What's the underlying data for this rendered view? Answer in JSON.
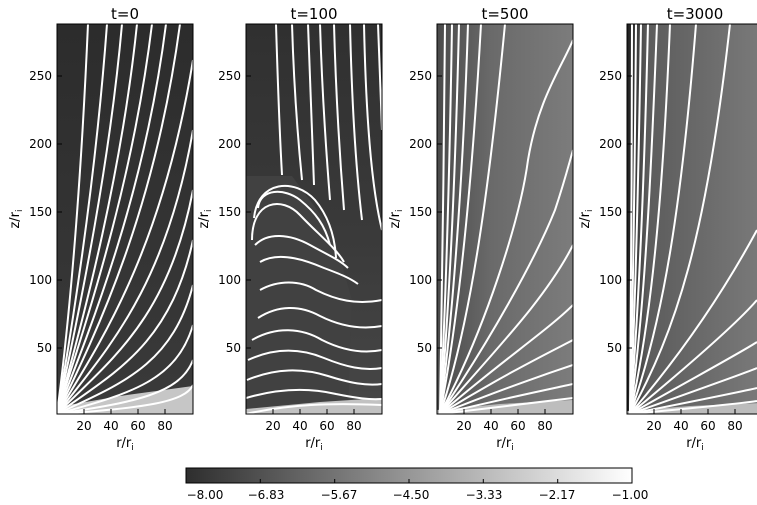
{
  "colors": {
    "frame": "#000000",
    "field_lines": "#ffffff",
    "colorbar_low": "#2e2e2e",
    "colorbar_high": "#ffffff"
  },
  "panels": [
    {
      "title": "t=0",
      "ylabel": "z/r",
      "ylabel_sub": "i",
      "xlabel": "r/r",
      "xlabel_sub": "i",
      "yticks": [
        "250",
        "200",
        "150",
        "100",
        "50"
      ],
      "xticks": [
        "20",
        "40",
        "60",
        "80"
      ]
    },
    {
      "title": "t=100",
      "ylabel": "z/r",
      "ylabel_sub": "i",
      "xlabel": "r/r",
      "xlabel_sub": "i",
      "yticks": [
        "250",
        "200",
        "150",
        "100",
        "50"
      ],
      "xticks": [
        "20",
        "40",
        "60",
        "80"
      ]
    },
    {
      "title": "t=500",
      "ylabel": "z/r",
      "ylabel_sub": "i",
      "xlabel": "r/r",
      "xlabel_sub": "i",
      "yticks": [
        "250",
        "200",
        "150",
        "100",
        "50"
      ],
      "xticks": [
        "20",
        "40",
        "60",
        "80"
      ]
    },
    {
      "title": "t=3000",
      "ylabel": "z/r",
      "ylabel_sub": "i",
      "xlabel": "r/r",
      "xlabel_sub": "i",
      "yticks": [
        "250",
        "200",
        "150",
        "100",
        "50"
      ],
      "xticks": [
        "20",
        "40",
        "60",
        "80"
      ]
    }
  ],
  "colorbar": {
    "ticks": [
      "−8.00",
      "−6.83",
      "−5.67",
      "−4.50",
      "−3.33",
      "−2.17",
      "−1.00"
    ]
  }
}
